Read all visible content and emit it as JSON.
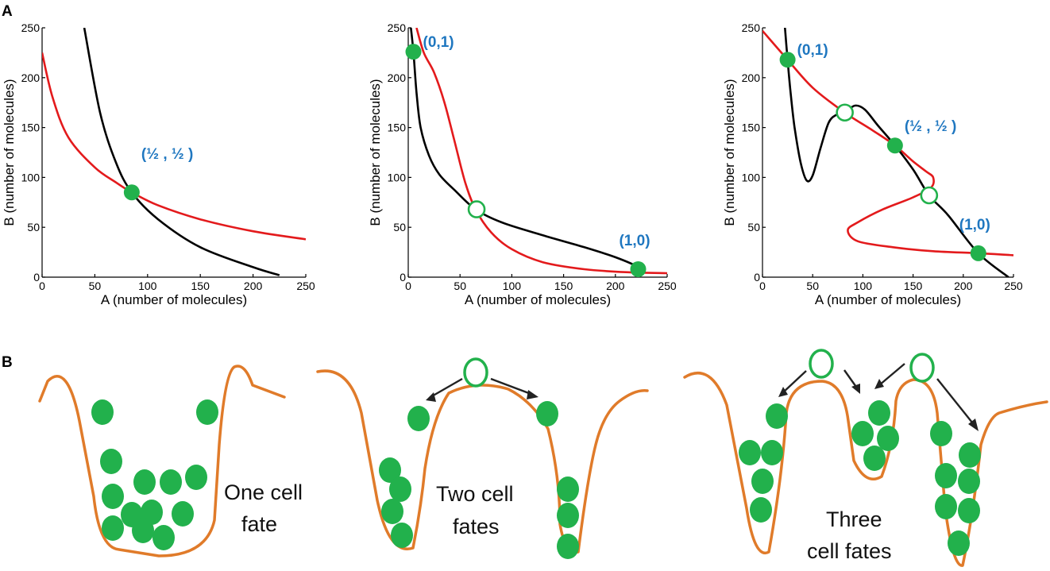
{
  "panel_a_label": "A",
  "panel_b_label": "B",
  "colors": {
    "red_nullcline": "#e31a1c",
    "black_nullcline": "#000000",
    "stable_point": "#22b14c",
    "point_label": "#1f77c0",
    "landscape": "#e07b2a",
    "cell": "#22b14c"
  },
  "chart_data": [
    {
      "type": "line",
      "xlabel": "A (number of molecules)",
      "ylabel": "B (number of molecules)",
      "xlim": [
        0,
        250
      ],
      "ylim": [
        0,
        250
      ],
      "xticks": [
        "0",
        "50",
        "100",
        "150",
        "200",
        "250"
      ],
      "yticks": [
        "0",
        "50",
        "100",
        "150",
        "200",
        "250"
      ],
      "series": [
        {
          "name": "red",
          "x": [
            0,
            10,
            25,
            50,
            70,
            85,
            110,
            150,
            200,
            250
          ],
          "y": [
            225,
            180,
            140,
            110,
            95,
            85,
            72,
            58,
            46,
            38
          ]
        },
        {
          "name": "black",
          "x": [
            40,
            55,
            70,
            85,
            110,
            150,
            200,
            225
          ],
          "y": [
            250,
            165,
            115,
            85,
            58,
            30,
            10,
            2
          ]
        }
      ],
      "fixed_points": [
        {
          "x": 85,
          "y": 85,
          "stable": true,
          "label": "(½ , ½ )"
        }
      ]
    },
    {
      "type": "line",
      "xlabel": "A (number of molecules)",
      "ylabel": "B (number of molecules)",
      "xlim": [
        0,
        250
      ],
      "ylim": [
        0,
        250
      ],
      "xticks": [
        "0",
        "50",
        "100",
        "150",
        "200",
        "250"
      ],
      "yticks": [
        "0",
        "50",
        "100",
        "150",
        "200",
        "250"
      ],
      "series": [
        {
          "name": "red",
          "x": [
            8,
            15,
            25,
            35,
            45,
            55,
            65,
            80,
            100,
            130,
            170,
            210,
            250
          ],
          "y": [
            250,
            225,
            205,
            175,
            135,
            95,
            68,
            45,
            28,
            15,
            8,
            5,
            4
          ]
        },
        {
          "name": "black",
          "x": [
            2,
            5,
            8,
            12,
            20,
            30,
            45,
            65,
            90,
            130,
            170,
            200,
            222,
            225
          ],
          "y": [
            255,
            226,
            185,
            150,
            122,
            103,
            87,
            68,
            55,
            42,
            30,
            20,
            10,
            4
          ]
        }
      ],
      "fixed_points": [
        {
          "x": 5,
          "y": 226,
          "stable": true,
          "label": "(0,1)"
        },
        {
          "x": 66,
          "y": 68,
          "stable": false,
          "label": ""
        },
        {
          "x": 222,
          "y": 8,
          "stable": true,
          "label": "(1,0)"
        }
      ]
    },
    {
      "type": "line",
      "xlabel": "A (number of molecules)",
      "ylabel": "B (number of molecules)",
      "xlim": [
        0,
        250
      ],
      "ylim": [
        0,
        250
      ],
      "xticks": [
        "0",
        "50",
        "100",
        "150",
        "200",
        "250"
      ],
      "yticks": [
        "0",
        "50",
        "100",
        "150",
        "200",
        "250"
      ],
      "series": [
        {
          "name": "red",
          "x": [
            0,
            12,
            25,
            50,
            82,
            110,
            132,
            150,
            163,
            170,
            168,
            150,
            120,
            95,
            85,
            95,
            130,
            170,
            215,
            250
          ],
          "y": [
            247,
            233,
            218,
            190,
            165,
            147,
            132,
            116,
            106,
            100,
            90,
            80,
            68,
            55,
            47,
            36,
            30,
            26,
            24,
            22
          ]
        },
        {
          "name": "black",
          "x": [
            22,
            25,
            28,
            32,
            38,
            44,
            50,
            58,
            66,
            74,
            82,
            92,
            102,
            115,
            132,
            150,
            166,
            185,
            215,
            245
          ],
          "y": [
            255,
            218,
            185,
            150,
            115,
            97,
            102,
            130,
            155,
            163,
            165,
            172,
            168,
            152,
            132,
            108,
            82,
            62,
            24,
            0
          ]
        }
      ],
      "fixed_points": [
        {
          "x": 25,
          "y": 218,
          "stable": true,
          "label": "(0,1)"
        },
        {
          "x": 82,
          "y": 165,
          "stable": false,
          "label": ""
        },
        {
          "x": 132,
          "y": 132,
          "stable": true,
          "label": "(½ , ½ )"
        },
        {
          "x": 166,
          "y": 82,
          "stable": false,
          "label": ""
        },
        {
          "x": 215,
          "y": 24,
          "stable": true,
          "label": "(1,0)"
        }
      ]
    }
  ],
  "panel_b": {
    "landscapes": [
      {
        "caption_lines": [
          "One cell",
          "fate"
        ]
      },
      {
        "caption_lines": [
          "Two cell",
          "fates"
        ]
      },
      {
        "caption_lines": [
          "Three",
          "cell fates"
        ]
      }
    ]
  }
}
